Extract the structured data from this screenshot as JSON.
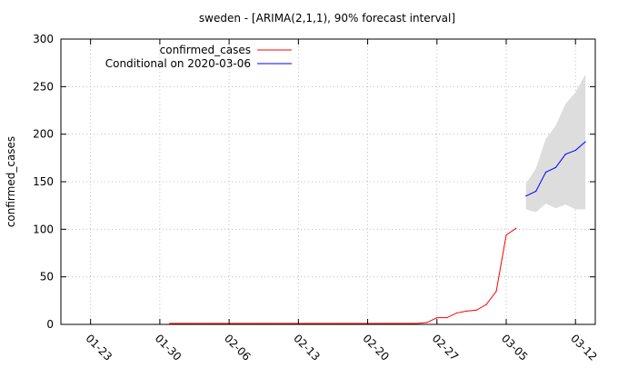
{
  "chart_data": {
    "type": "line",
    "title": "sweden -  [ARIMA(2,1,1), 90% forecast interval]",
    "xlabel": "",
    "ylabel": "confirmed_cases",
    "ylim": [
      0,
      300
    ],
    "xlim": [
      "2020-01-20",
      "2020-03-14"
    ],
    "grid": true,
    "legend_position": "top-left",
    "x_ticks": [
      "01-23",
      "01-30",
      "02-06",
      "02-13",
      "02-20",
      "02-27",
      "03-05",
      "03-12"
    ],
    "y_ticks": [
      0,
      50,
      100,
      150,
      200,
      250,
      300
    ],
    "series": [
      {
        "name": "confirmed_cases",
        "color": "#ff0000",
        "x": [
          "2020-01-31",
          "2020-02-01",
          "2020-02-02",
          "2020-02-03",
          "2020-02-04",
          "2020-02-05",
          "2020-02-06",
          "2020-02-07",
          "2020-02-08",
          "2020-02-09",
          "2020-02-10",
          "2020-02-11",
          "2020-02-12",
          "2020-02-13",
          "2020-02-14",
          "2020-02-15",
          "2020-02-16",
          "2020-02-17",
          "2020-02-18",
          "2020-02-19",
          "2020-02-20",
          "2020-02-21",
          "2020-02-22",
          "2020-02-23",
          "2020-02-24",
          "2020-02-25",
          "2020-02-26",
          "2020-02-27",
          "2020-02-28",
          "2020-02-29",
          "2020-03-01",
          "2020-03-02",
          "2020-03-03",
          "2020-03-04",
          "2020-03-05",
          "2020-03-06"
        ],
        "values": [
          1,
          1,
          1,
          1,
          1,
          1,
          1,
          1,
          1,
          1,
          1,
          1,
          1,
          1,
          1,
          1,
          1,
          1,
          1,
          1,
          1,
          1,
          1,
          1,
          1,
          1,
          2,
          7,
          7,
          12,
          14,
          15,
          21,
          35,
          94,
          101
        ]
      },
      {
        "name": "Conditional on 2020-03-06",
        "color": "#0000ff",
        "x": [
          "2020-03-07",
          "2020-03-08",
          "2020-03-09",
          "2020-03-10",
          "2020-03-11",
          "2020-03-12",
          "2020-03-13"
        ],
        "values": [
          135,
          140,
          160,
          165,
          179,
          183,
          192
        ],
        "interval_lower": [
          121,
          118,
          127,
          122,
          126,
          121,
          121
        ],
        "interval_upper": [
          148,
          164,
          195,
          209,
          232,
          244,
          263
        ],
        "interval_color": "#dddddd"
      }
    ]
  }
}
